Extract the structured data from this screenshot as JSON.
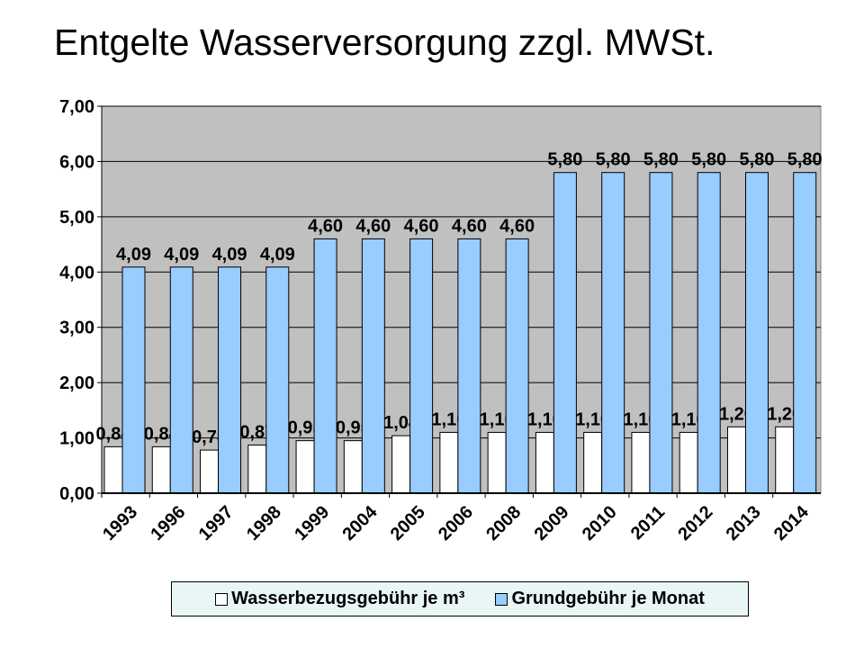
{
  "chart_data": {
    "type": "bar",
    "title": "Entgelte Wasserversorgung zzgl. MWSt.",
    "categories": [
      "1993",
      "1996",
      "1997",
      "1998",
      "1999",
      "2004",
      "2005",
      "2006",
      "2008",
      "2009",
      "2010",
      "2011",
      "2012",
      "2013",
      "2014"
    ],
    "series": [
      {
        "name": "Wasserbezugsgebühr je m³",
        "color": "#ffffff",
        "values": [
          0.84,
          0.84,
          0.78,
          0.87,
          0.95,
          0.95,
          1.04,
          1.1,
          1.1,
          1.1,
          1.1,
          1.1,
          1.1,
          1.2,
          1.2
        ],
        "labels": [
          "0,84",
          "0,84",
          "0,78",
          "0,87",
          "0,95",
          "0,95",
          "1,04",
          "1,10",
          "1,10",
          "1,10",
          "1,10",
          "1,10",
          "1,10",
          "1,20",
          "1,20"
        ]
      },
      {
        "name": "Grundgebühr je Monat",
        "color": "#99ccff",
        "values": [
          4.09,
          4.09,
          4.09,
          4.09,
          4.6,
          4.6,
          4.6,
          4.6,
          4.6,
          5.8,
          5.8,
          5.8,
          5.8,
          5.8,
          5.8
        ],
        "labels": [
          "4,09",
          "4,09",
          "4,09",
          "4,09",
          "4,60",
          "4,60",
          "4,60",
          "4,60",
          "4,60",
          "5,80",
          "5,80",
          "5,80",
          "5,80",
          "5,80",
          "5,80"
        ]
      }
    ],
    "ylim": [
      0,
      7
    ],
    "yticks": [
      "0,00",
      "1,00",
      "2,00",
      "3,00",
      "4,00",
      "5,00",
      "6,00",
      "7,00"
    ],
    "plot_background": "#c0c0c0",
    "legend_position": "bottom"
  }
}
